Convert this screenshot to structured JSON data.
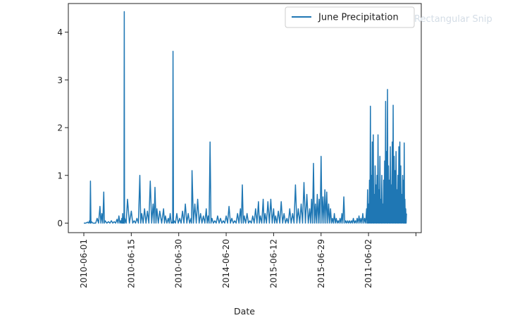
{
  "chart_data": {
    "type": "line",
    "xlabel": "Date",
    "ylabel": "",
    "ylim": [
      -0.2,
      4.6
    ],
    "y_ticks": [
      0,
      1,
      2,
      3,
      4
    ],
    "x_tick_labels": [
      "2010-06-01",
      "2010-06-15",
      "2010-06-30",
      "2014-06-20",
      "2015-06-12",
      "2015-06-29",
      "2011-06-02",
      ""
    ],
    "x_index_max": 1700,
    "x_ticks": [
      0,
      250,
      500,
      750,
      1000,
      1250,
      1500,
      1750
    ],
    "legend_position": "top-right",
    "grid": false,
    "series": [
      {
        "name": "June Precipitation",
        "color": "#1f77b4",
        "peaks": [
          [
            0,
            0.0
          ],
          [
            20,
            0.02
          ],
          [
            30,
            0.05
          ],
          [
            35,
            0.88
          ],
          [
            40,
            0.03
          ],
          [
            55,
            0.0
          ],
          [
            70,
            0.1
          ],
          [
            85,
            0.35
          ],
          [
            95,
            0.2
          ],
          [
            105,
            0.65
          ],
          [
            112,
            0.05
          ],
          [
            130,
            0.03
          ],
          [
            145,
            0.05
          ],
          [
            160,
            0.03
          ],
          [
            175,
            0.08
          ],
          [
            185,
            0.15
          ],
          [
            195,
            0.05
          ],
          [
            200,
            0.1
          ],
          [
            205,
            0.2
          ],
          [
            210,
            0.08
          ],
          [
            213,
            4.43
          ],
          [
            216,
            0.1
          ],
          [
            230,
            0.5
          ],
          [
            250,
            0.25
          ],
          [
            265,
            0.05
          ],
          [
            280,
            0.1
          ],
          [
            295,
            1.0
          ],
          [
            305,
            0.2
          ],
          [
            320,
            0.3
          ],
          [
            335,
            0.25
          ],
          [
            350,
            0.88
          ],
          [
            365,
            0.4
          ],
          [
            375,
            0.75
          ],
          [
            385,
            0.3
          ],
          [
            400,
            0.25
          ],
          [
            420,
            0.3
          ],
          [
            430,
            0.15
          ],
          [
            445,
            0.1
          ],
          [
            455,
            0.2
          ],
          [
            466,
            0.02
          ],
          [
            470,
            3.6
          ],
          [
            475,
            0.05
          ],
          [
            490,
            0.2
          ],
          [
            505,
            0.1
          ],
          [
            520,
            0.25
          ],
          [
            535,
            0.4
          ],
          [
            550,
            0.2
          ],
          [
            565,
            0.1
          ],
          [
            570,
            1.1
          ],
          [
            585,
            0.4
          ],
          [
            600,
            0.5
          ],
          [
            615,
            0.2
          ],
          [
            630,
            0.15
          ],
          [
            645,
            0.3
          ],
          [
            655,
            0.15
          ],
          [
            665,
            1.7
          ],
          [
            675,
            0.1
          ],
          [
            690,
            0.05
          ],
          [
            705,
            0.15
          ],
          [
            720,
            0.1
          ],
          [
            735,
            0.05
          ],
          [
            750,
            0.15
          ],
          [
            765,
            0.35
          ],
          [
            780,
            0.1
          ],
          [
            795,
            0.05
          ],
          [
            810,
            0.2
          ],
          [
            825,
            0.3
          ],
          [
            835,
            0.8
          ],
          [
            845,
            0.15
          ],
          [
            860,
            0.2
          ],
          [
            875,
            0.05
          ],
          [
            890,
            0.15
          ],
          [
            905,
            0.3
          ],
          [
            920,
            0.45
          ],
          [
            930,
            0.15
          ],
          [
            945,
            0.5
          ],
          [
            955,
            0.2
          ],
          [
            970,
            0.45
          ],
          [
            985,
            0.5
          ],
          [
            1000,
            0.3
          ],
          [
            1010,
            0.15
          ],
          [
            1025,
            0.25
          ],
          [
            1040,
            0.45
          ],
          [
            1055,
            0.2
          ],
          [
            1070,
            0.1
          ],
          [
            1085,
            0.3
          ],
          [
            1100,
            0.2
          ],
          [
            1115,
            0.8
          ],
          [
            1130,
            0.3
          ],
          [
            1145,
            0.4
          ],
          [
            1160,
            0.85
          ],
          [
            1175,
            0.6
          ],
          [
            1190,
            0.3
          ],
          [
            1200,
            0.5
          ],
          [
            1210,
            1.25
          ],
          [
            1220,
            0.4
          ],
          [
            1230,
            0.6
          ],
          [
            1240,
            0.5
          ],
          [
            1250,
            1.4
          ],
          [
            1260,
            0.55
          ],
          [
            1270,
            0.7
          ],
          [
            1280,
            0.65
          ],
          [
            1290,
            0.4
          ],
          [
            1300,
            0.3
          ],
          [
            1310,
            0.1
          ],
          [
            1320,
            0.2
          ],
          [
            1330,
            0.1
          ],
          [
            1340,
            0.05
          ],
          [
            1350,
            0.1
          ],
          [
            1360,
            0.2
          ],
          [
            1370,
            0.55
          ],
          [
            1380,
            0.05
          ],
          [
            1390,
            0.05
          ],
          [
            1400,
            0.05
          ],
          [
            1410,
            0.05
          ],
          [
            1420,
            0.1
          ],
          [
            1430,
            0.05
          ],
          [
            1440,
            0.1
          ],
          [
            1450,
            0.15
          ],
          [
            1460,
            0.1
          ],
          [
            1470,
            0.2
          ],
          [
            1480,
            0.1
          ],
          [
            1490,
            0.3
          ],
          [
            1495,
            0.7
          ],
          [
            1500,
            0.4
          ],
          [
            1505,
            0.9
          ],
          [
            1510,
            2.45
          ],
          [
            1515,
            1.0
          ],
          [
            1520,
            1.7
          ],
          [
            1525,
            1.85
          ],
          [
            1530,
            0.6
          ],
          [
            1535,
            1.2
          ],
          [
            1540,
            0.8
          ],
          [
            1545,
            1.0
          ],
          [
            1550,
            1.85
          ],
          [
            1555,
            0.7
          ],
          [
            1560,
            1.4
          ],
          [
            1565,
            0.5
          ],
          [
            1570,
            1.0
          ],
          [
            1575,
            0.4
          ],
          [
            1580,
            0.9
          ],
          [
            1585,
            1.3
          ],
          [
            1590,
            2.55
          ],
          [
            1595,
            1.5
          ],
          [
            1600,
            2.8
          ],
          [
            1605,
            1.2
          ],
          [
            1610,
            0.9
          ],
          [
            1615,
            1.6
          ],
          [
            1620,
            0.8
          ],
          [
            1625,
            1.7
          ],
          [
            1630,
            2.47
          ],
          [
            1635,
            1.4
          ],
          [
            1640,
            1.1
          ],
          [
            1645,
            1.5
          ],
          [
            1650,
            0.7
          ],
          [
            1655,
            1.0
          ],
          [
            1660,
            1.6
          ],
          [
            1665,
            1.7
          ],
          [
            1670,
            1.2
          ],
          [
            1675,
            0.6
          ],
          [
            1680,
            1.0
          ],
          [
            1685,
            0.9
          ],
          [
            1688,
            1.68
          ],
          [
            1692,
            0.5
          ],
          [
            1696,
            0.3
          ],
          [
            1700,
            0.2
          ]
        ]
      }
    ]
  },
  "overlay": {
    "text": "Rectangular Snip"
  }
}
